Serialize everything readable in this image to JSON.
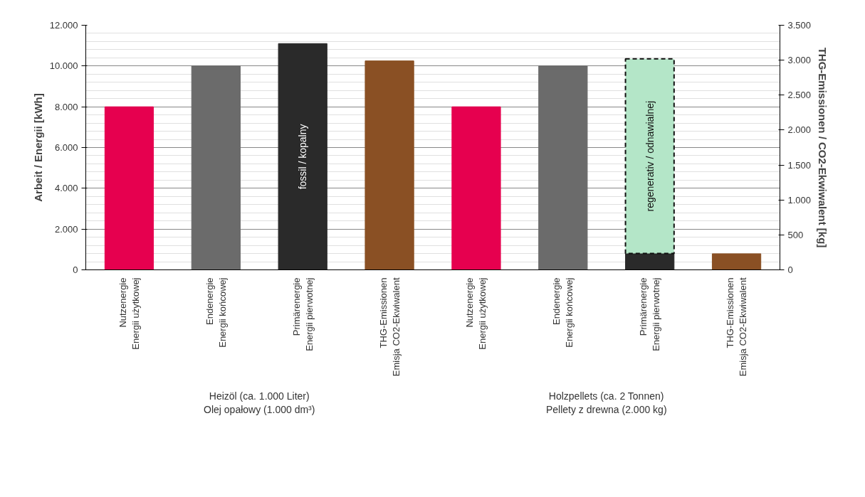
{
  "chart_data": {
    "type": "bar",
    "stacked": true,
    "categories": [
      "Nutzenergie\nEnergii użytkowej",
      "Endenergie\nEnergii końcowej",
      "Primärenergie\nEnergii pierwotnej",
      "THG-Emissionen\nEmisja CO2-Ekwiwalent",
      "Nutzenergie\nEnergii użytkowej",
      "Endenergie\nEnergii końcowej",
      "Primärenergie\nEnergii pierwotnej",
      "THG-Emissionen\nEmisja CO2-Ekwiwalent"
    ],
    "series": [
      {
        "colors": [
          "#e6004f",
          "#6b6b6b",
          null,
          null,
          "#e6004f",
          "#6b6b6b",
          null,
          null
        ],
        "values": [
          8000,
          10000,
          null,
          null,
          8000,
          10000,
          null,
          null
        ]
      },
      {
        "name": "fossil / kopalny",
        "color": "#2a2a2a",
        "values": [
          null,
          null,
          11100,
          null,
          null,
          null,
          800,
          null
        ]
      },
      {
        "name": "regenerativ / odnawialnej",
        "color": "#b4e6c8",
        "line_style": "dashed",
        "values": [
          null,
          null,
          null,
          null,
          null,
          null,
          9550,
          null
        ]
      },
      {
        "color": "#8a5024",
        "axis": "y2",
        "values": [
          null,
          null,
          null,
          2990,
          null,
          null,
          null,
          230
        ]
      }
    ],
    "ylabel": "Arbeit / Energii [kWh]",
    "y2label": "THG-Emissionen / CO2-Ekwiwalent [kg]",
    "ylim": [
      0,
      12000
    ],
    "yticks": [
      0,
      {
        "value": 2000,
        "label": "2.000"
      },
      {
        "value": 4000,
        "label": "4.000"
      },
      {
        "value": 6000,
        "label": "6.000"
      },
      {
        "value": 8000,
        "label": "8.000"
      },
      {
        "value": 10000,
        "label": "10.000"
      },
      {
        "value": 12000,
        "label": "12.000"
      }
    ],
    "y2lim": [
      0,
      3500
    ],
    "y2ticks": [
      0,
      500,
      {
        "value": 1000,
        "label": "1.000"
      },
      {
        "value": 1500,
        "label": "1.500"
      },
      {
        "value": 2000,
        "label": "2.000"
      },
      {
        "value": 2500,
        "label": "2.500"
      },
      {
        "value": 3000,
        "label": "3.000"
      },
      {
        "value": 3500,
        "label": "3.500"
      }
    ],
    "grid": "y",
    "annotations": [
      "Heizöl (ca. 1.000 Liter)\nOlej opałowy (1.000 dm³)",
      "Holzpellets (ca. 2 Tonnen)\nPellety z drewna (2.000 kg)"
    ]
  }
}
